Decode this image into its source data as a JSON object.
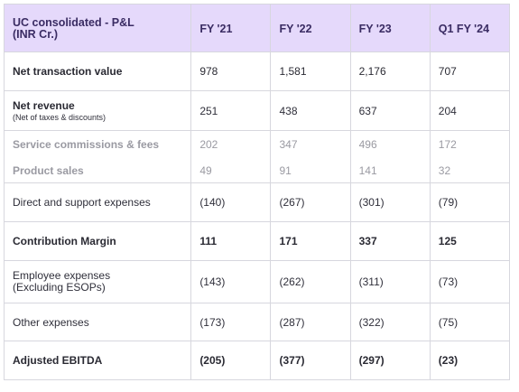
{
  "header": {
    "label_line1": "UC consolidated - P&L",
    "label_line2": "(INR Cr.)",
    "periods": [
      "FY '21",
      "FY '22",
      "FY '23",
      "Q1 FY '24"
    ]
  },
  "rows": {
    "ntv": {
      "label": "Net transaction value",
      "values": [
        "978",
        "1,581",
        "2,176",
        "707"
      ]
    },
    "net_revenue": {
      "label": "Net revenue",
      "note": "(Net of taxes & discounts)",
      "values": [
        "251",
        "438",
        "637",
        "204"
      ]
    },
    "service_commissions": {
      "label": "Service commissions & fees",
      "values": [
        "202",
        "347",
        "496",
        "172"
      ]
    },
    "product_sales": {
      "label": "Product sales",
      "values": [
        "49",
        "91",
        "141",
        "32"
      ]
    },
    "direct_support": {
      "label": "Direct and support expenses",
      "values": [
        "(140)",
        "(267)",
        "(301)",
        "(79)"
      ]
    },
    "contribution_margin": {
      "label": "Contribution Margin",
      "values": [
        "111",
        "171",
        "337",
        "125"
      ]
    },
    "employee_expenses": {
      "label_line1": "Employee expenses",
      "label_line2": "(Excluding ESOPs)",
      "values": [
        "(143)",
        "(262)",
        "(311)",
        "(73)"
      ]
    },
    "other_expenses": {
      "label": "Other expenses",
      "values": [
        "(173)",
        "(287)",
        "(322)",
        "(75)"
      ]
    },
    "adjusted_ebitda": {
      "label": "Adjusted EBITDA",
      "values": [
        "(205)",
        "(377)",
        "(297)",
        "(23)"
      ]
    }
  },
  "colors": {
    "header_bg": "#e5d9fb",
    "header_text": "#3a2c63",
    "border": "#d7d7de",
    "muted_text": "#9a9aa2"
  }
}
